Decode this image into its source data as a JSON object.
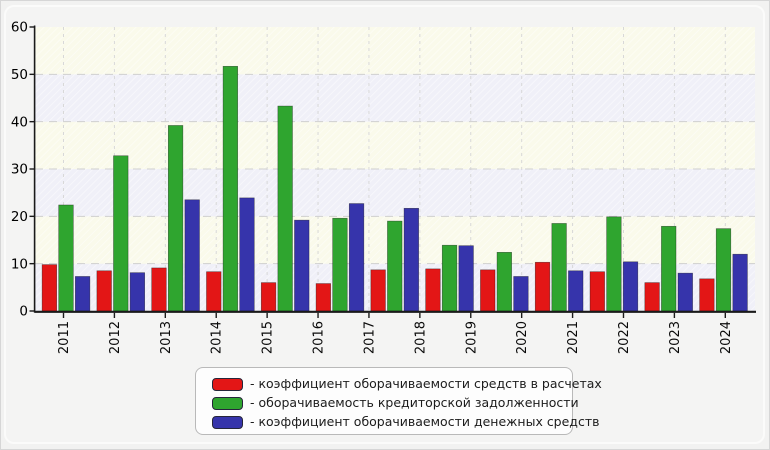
{
  "page": {
    "background": "#f2f2f1"
  },
  "chart_data": {
    "type": "bar",
    "title": "",
    "xlabel": "",
    "ylabel": "",
    "ylim": [
      0,
      60
    ],
    "y_ticks": [
      0,
      10,
      20,
      30,
      40,
      50,
      60
    ],
    "x_tick_labels": [
      "2011",
      "2012",
      "2013",
      "2014",
      "2015",
      "2016",
      "2017",
      "2018",
      "2019",
      "2020",
      "2021",
      "2022",
      "2023",
      "2024"
    ],
    "group_count": 13,
    "grid": true,
    "legend_position": "bottom-center",
    "band_colors": [
      "#f0f0f8",
      "#fafaeb"
    ],
    "axis_color": "#1a1a1a",
    "gridline_color": "#cfcfcf",
    "series": [
      {
        "legend_label": "- коэффициент оборачиваемости средств в расчетах",
        "color": "#e31616",
        "values": [
          9.8,
          8.5,
          9.1,
          8.3,
          6.0,
          5.8,
          8.7,
          8.9,
          8.7,
          10.3,
          8.3,
          6.0,
          6.8
        ]
      },
      {
        "legend_label": "- оборачиваемость кредиторской задолженности",
        "color": "#2fa52f",
        "values": [
          22.4,
          32.8,
          39.2,
          51.7,
          43.3,
          19.6,
          19.0,
          13.9,
          12.4,
          18.5,
          19.9,
          17.9,
          17.4
        ]
      },
      {
        "legend_label": "- коэффициент оборачиваемости денежных средств",
        "color": "#3634ab",
        "values": [
          7.3,
          8.1,
          23.5,
          23.9,
          19.2,
          22.7,
          21.7,
          13.8,
          7.3,
          8.5,
          10.4,
          8.0,
          12.0
        ]
      }
    ]
  }
}
